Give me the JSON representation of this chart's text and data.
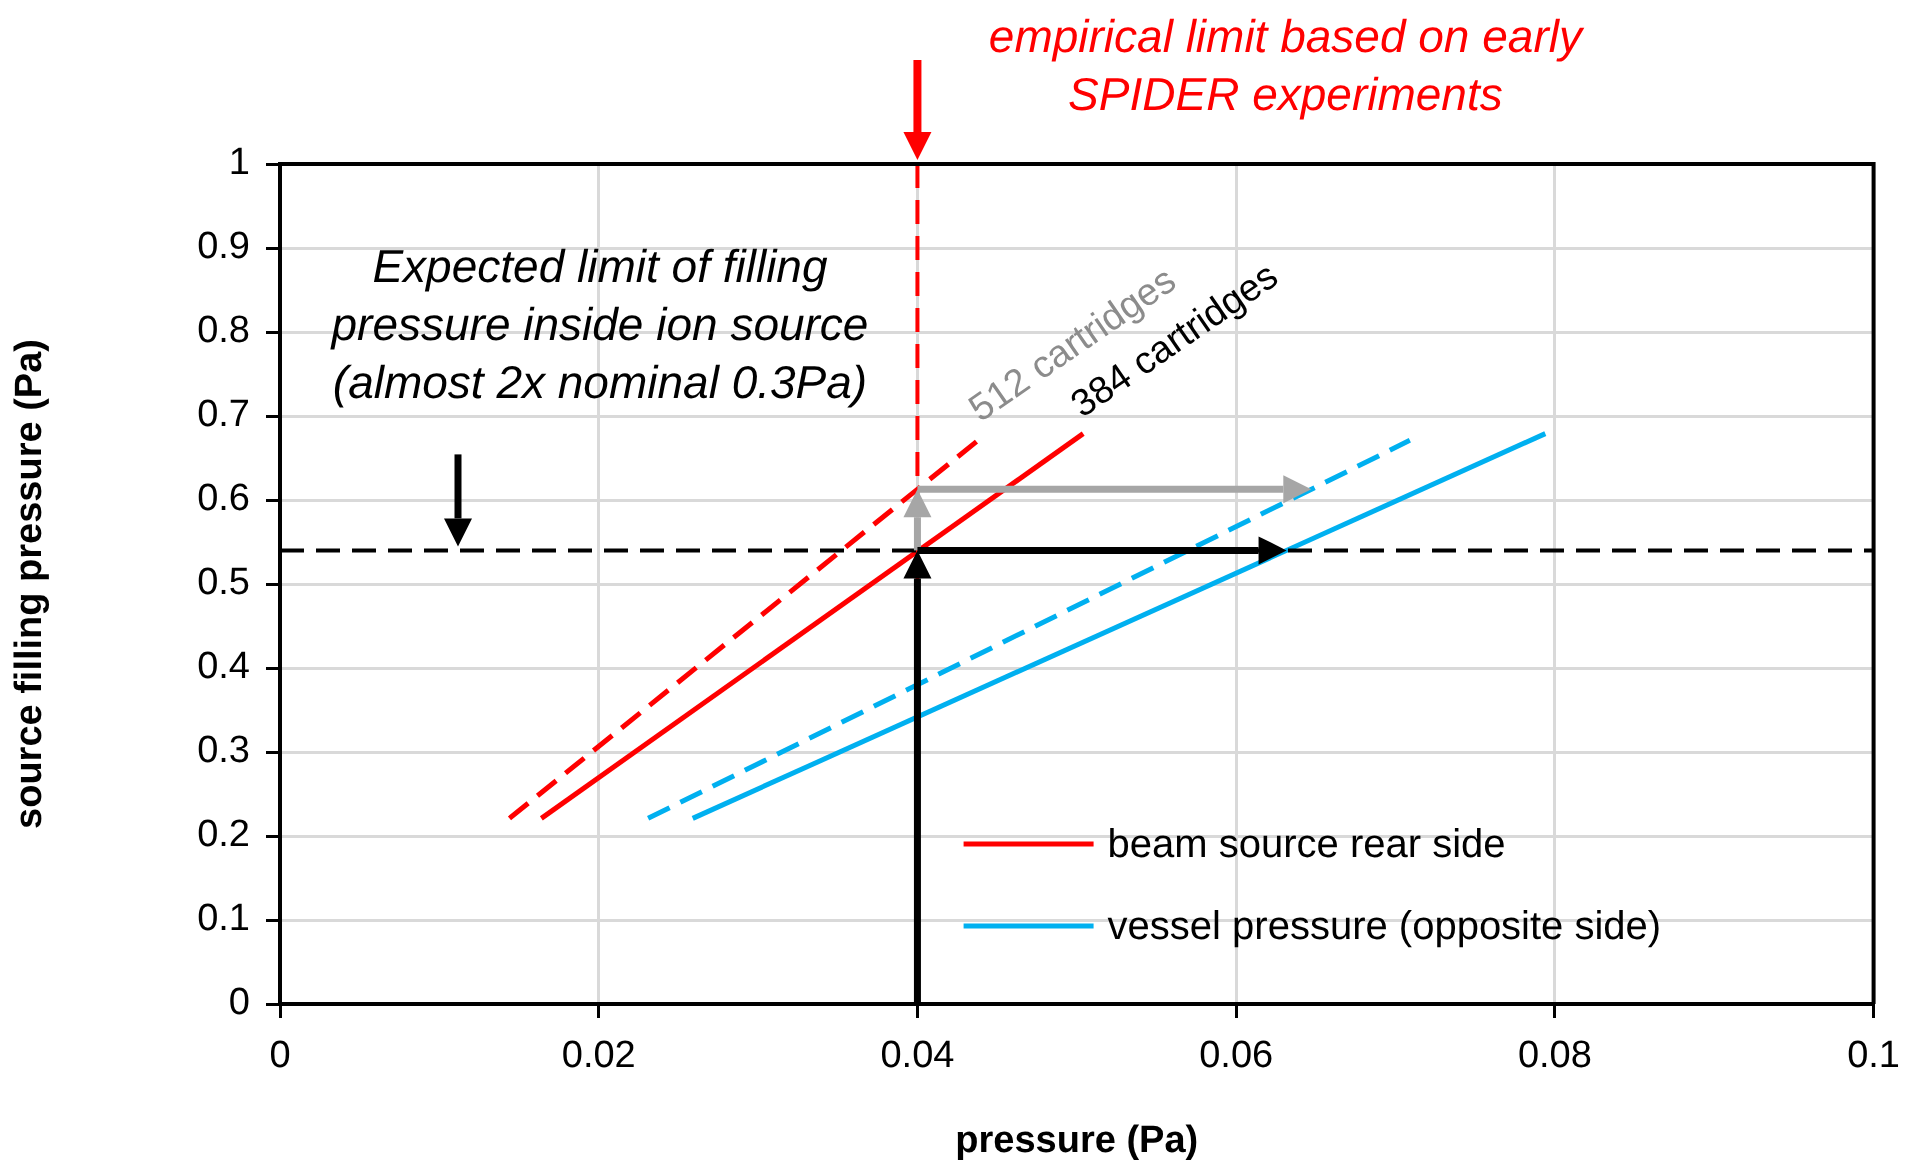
{
  "chart_data": {
    "type": "line",
    "xlabel": "pressure (Pa)",
    "ylabel": "source filling pressure (Pa)",
    "series": [
      {
        "name": "beam source rear side",
        "color": "#ff0000",
        "line_style": "solid",
        "x": [
          0.0164,
          0.0504
        ],
        "values": [
          0.221,
          0.679
        ]
      },
      {
        "color": "#ff0000",
        "line_style": "dashed",
        "x": [
          0.0144,
          0.044
        ],
        "values": [
          0.221,
          0.674
        ]
      },
      {
        "name": "vessel pressure (opposite side)",
        "color": "#00b0f0",
        "line_style": "solid",
        "x": [
          0.0259,
          0.0794
        ],
        "values": [
          0.221,
          0.679
        ]
      },
      {
        "color": "#00b0f0",
        "line_style": "dashed",
        "x": [
          0.0231,
          0.0709
        ],
        "values": [
          0.221,
          0.671
        ]
      }
    ],
    "xlim": [
      0,
      0.1
    ],
    "xticks": [
      0,
      0.02,
      0.04,
      0.06,
      0.08,
      0.1
    ],
    "ylim": [
      0,
      1
    ],
    "yticks": [
      0,
      0.1,
      0.2,
      0.3,
      0.4,
      0.5,
      0.6,
      0.7,
      0.8,
      0.9,
      1
    ],
    "ref_lines": [
      {
        "axis": "x",
        "value": 0.04,
        "color": "#ff0000",
        "line_style": "dashed"
      },
      {
        "axis": "y",
        "value": 0.54,
        "color": "#000000",
        "line_style": "dashed"
      }
    ],
    "annotations": [
      "empirical limit based on early SPIDER experiments",
      "Expected limit of filling pressure inside ion source (almost 2x nominal 0.3Pa)",
      {
        "text": "512 cartridges",
        "x": 0.044,
        "y": 0.674
      },
      {
        "text": "384 cartridges",
        "x": 0.0504,
        "y": 0.679
      }
    ],
    "grid": true,
    "legend": "bottom right",
    "marker": "none"
  }
}
